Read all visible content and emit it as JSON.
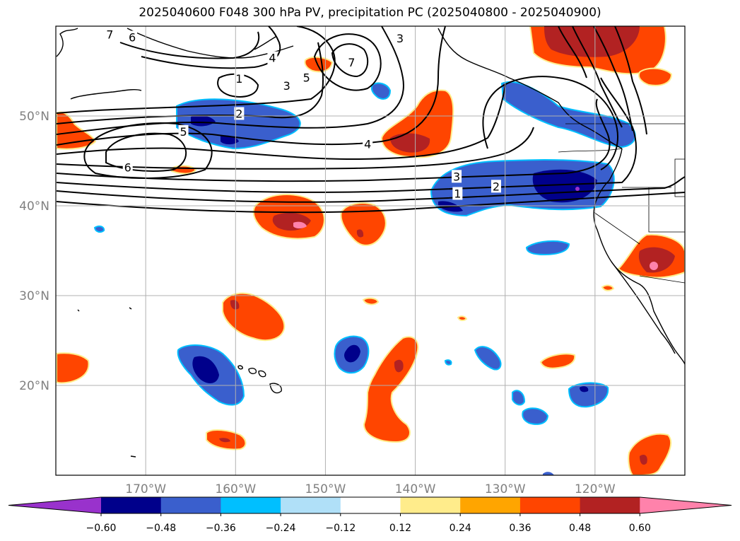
{
  "title": "2025040600 F048 300 hPa PV, precipitation PC (2025040800 - 2025040900)",
  "map": {
    "lon_range": [
      -180,
      -110
    ],
    "lat_range": [
      10,
      60
    ],
    "lat_ticks": [
      {
        "value": 20,
        "label": "20°N"
      },
      {
        "value": 30,
        "label": "30°N"
      },
      {
        "value": 40,
        "label": "40°N"
      },
      {
        "value": 50,
        "label": "50°N"
      }
    ],
    "lon_ticks": [
      {
        "value": -170,
        "label": "170°W"
      },
      {
        "value": -160,
        "label": "160°W"
      },
      {
        "value": -150,
        "label": "150°W"
      },
      {
        "value": -140,
        "label": "140°W"
      },
      {
        "value": -130,
        "label": "130°W"
      },
      {
        "value": -120,
        "label": "120°W"
      }
    ],
    "gridlines": true
  },
  "contour_labels": [
    {
      "text": "7",
      "lon": -174,
      "lat": 59
    },
    {
      "text": "6",
      "lon": -171.5,
      "lat": 58.7
    },
    {
      "text": "4",
      "lon": -155.9,
      "lat": 56.4
    },
    {
      "text": "3",
      "lon": -154.3,
      "lat": 53.3
    },
    {
      "text": "5",
      "lon": -152.1,
      "lat": 54.2
    },
    {
      "text": "7",
      "lon": -147.1,
      "lat": 55.9
    },
    {
      "text": "3",
      "lon": -141.7,
      "lat": 58.6
    },
    {
      "text": "1",
      "lon": -159.6,
      "lat": 54.1
    },
    {
      "text": "2",
      "lon": -159.6,
      "lat": 50.2
    },
    {
      "text": "5",
      "lon": -165.8,
      "lat": 48.2
    },
    {
      "text": "4",
      "lon": -145.3,
      "lat": 46.8
    },
    {
      "text": "6",
      "lon": -172,
      "lat": 44.2
    },
    {
      "text": "3",
      "lon": -135.4,
      "lat": 43.2
    },
    {
      "text": "2",
      "lon": -131,
      "lat": 42.1
    },
    {
      "text": "1",
      "lon": -135.3,
      "lat": 41.3
    }
  ],
  "colorbar": {
    "colors": [
      "#9932CC",
      "#00008B",
      "#3A5FCD",
      "#00BFFF",
      "#B0E0F8",
      "#FFFFFF",
      "#FFEC8B",
      "#FFA500",
      "#FF4500",
      "#B22222",
      "#FF82AB"
    ],
    "tick_labels": [
      "−0.60",
      "−0.48",
      "−0.36",
      "−0.24",
      "−0.12",
      "0.12",
      "0.24",
      "0.36",
      "0.48",
      "0.60"
    ],
    "extend": "both"
  }
}
